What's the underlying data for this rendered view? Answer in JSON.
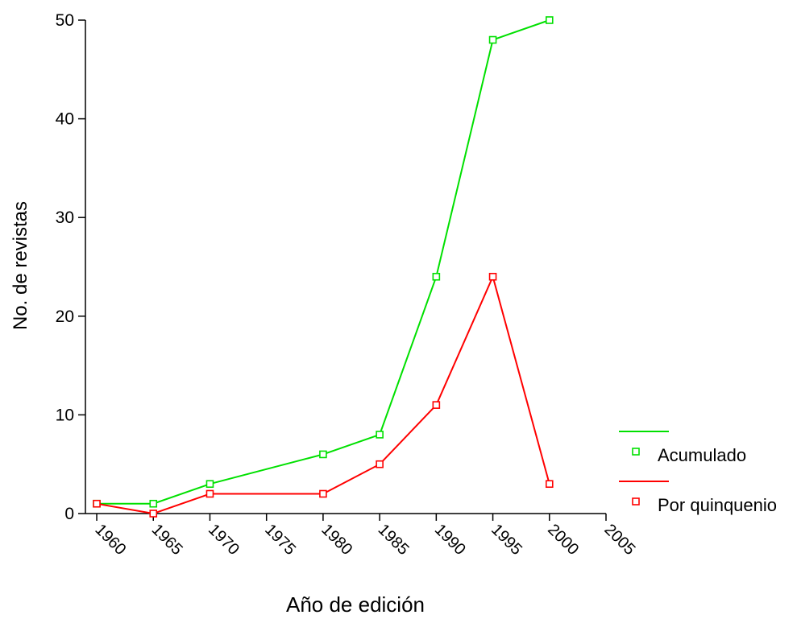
{
  "chart_data": {
    "type": "line",
    "title": "",
    "xlabel": "Año de edición",
    "ylabel": "No. de revistas",
    "xlim": [
      1959,
      2005
    ],
    "ylim": [
      0,
      50
    ],
    "x_ticks": [
      "1960",
      "1965",
      "1970",
      "1975",
      "1980",
      "1985",
      "1990",
      "1995",
      "2000",
      "2005"
    ],
    "y_ticks": [
      "0",
      "10",
      "20",
      "30",
      "40",
      "50"
    ],
    "legend_position": "right",
    "series": [
      {
        "name": "Acumulado",
        "color": "#00e000",
        "x": [
          1960,
          1965,
          1970,
          1980,
          1985,
          1990,
          1995,
          2000
        ],
        "y": [
          1,
          1,
          3,
          6,
          8,
          24,
          48,
          50
        ]
      },
      {
        "name": "Por quinquenio",
        "color": "#ff0000",
        "x": [
          1960,
          1965,
          1970,
          1980,
          1985,
          1990,
          1995,
          2000
        ],
        "y": [
          1,
          0,
          2,
          2,
          5,
          11,
          24,
          3
        ]
      }
    ]
  }
}
